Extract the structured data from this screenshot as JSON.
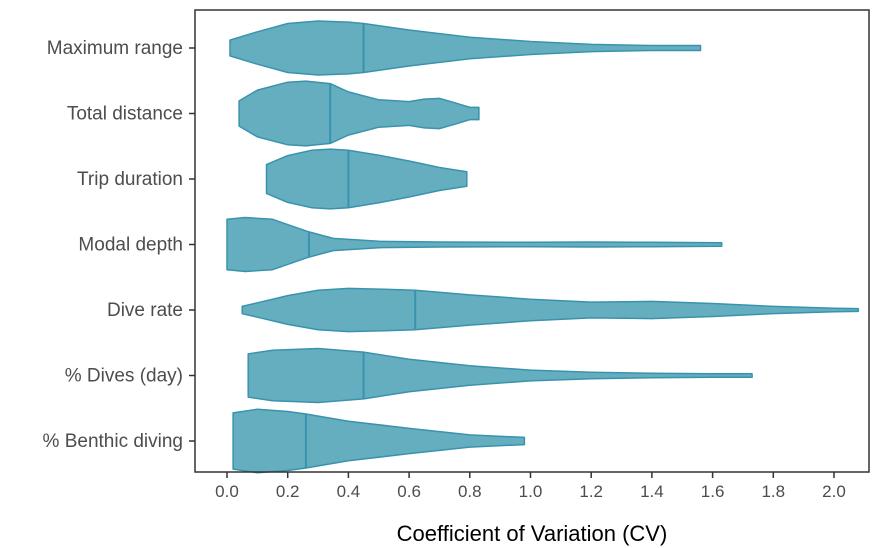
{
  "chart_data": {
    "type": "violin",
    "title": "",
    "xlabel": "Coefficient of Variation (CV)",
    "ylabel": "",
    "xlim": [
      -0.1,
      2.1
    ],
    "xticks": [
      0.0,
      0.2,
      0.4,
      0.6,
      0.8,
      1.0,
      1.2,
      1.4,
      1.6,
      1.8,
      2.0
    ],
    "xtick_labels": [
      "0.0",
      "0.2",
      "0.4",
      "0.6",
      "0.8",
      "1.0",
      "1.2",
      "1.4",
      "1.6",
      "1.8",
      "2.0"
    ],
    "grid": false,
    "legend": "none",
    "fill_color": "#64aec0",
    "line_color": "#3a93ad",
    "categories": [
      "Maximum range",
      "Total distance",
      "Trip duration",
      "Modal depth",
      "Dive rate",
      "% Dives (day)",
      "% Benthic diving"
    ],
    "violins": [
      {
        "name": "Maximum range",
        "min": 0.01,
        "max": 1.56,
        "median": 0.45,
        "profile": [
          [
            0.01,
            0.22
          ],
          [
            0.1,
            0.45
          ],
          [
            0.2,
            0.68
          ],
          [
            0.3,
            0.75
          ],
          [
            0.4,
            0.72
          ],
          [
            0.45,
            0.68
          ],
          [
            0.6,
            0.5
          ],
          [
            0.8,
            0.3
          ],
          [
            1.0,
            0.18
          ],
          [
            1.2,
            0.1
          ],
          [
            1.4,
            0.07
          ],
          [
            1.56,
            0.07
          ]
        ]
      },
      {
        "name": "Total distance",
        "min": 0.04,
        "max": 0.83,
        "median": 0.34,
        "profile": [
          [
            0.04,
            0.35
          ],
          [
            0.1,
            0.65
          ],
          [
            0.2,
            0.87
          ],
          [
            0.26,
            0.9
          ],
          [
            0.34,
            0.83
          ],
          [
            0.4,
            0.6
          ],
          [
            0.5,
            0.38
          ],
          [
            0.6,
            0.33
          ],
          [
            0.65,
            0.4
          ],
          [
            0.7,
            0.42
          ],
          [
            0.75,
            0.3
          ],
          [
            0.8,
            0.17
          ],
          [
            0.83,
            0.17
          ]
        ]
      },
      {
        "name": "Trip duration",
        "min": 0.13,
        "max": 0.79,
        "median": 0.4,
        "profile": [
          [
            0.13,
            0.4
          ],
          [
            0.2,
            0.65
          ],
          [
            0.28,
            0.8
          ],
          [
            0.34,
            0.83
          ],
          [
            0.4,
            0.8
          ],
          [
            0.5,
            0.66
          ],
          [
            0.6,
            0.5
          ],
          [
            0.7,
            0.32
          ],
          [
            0.79,
            0.2
          ]
        ]
      },
      {
        "name": "Modal depth",
        "min": 0.0,
        "max": 1.63,
        "median": 0.27,
        "profile": [
          [
            0.0,
            0.7
          ],
          [
            0.06,
            0.75
          ],
          [
            0.15,
            0.7
          ],
          [
            0.27,
            0.35
          ],
          [
            0.35,
            0.17
          ],
          [
            0.5,
            0.09
          ],
          [
            0.7,
            0.07
          ],
          [
            1.0,
            0.06
          ],
          [
            1.2,
            0.07
          ],
          [
            1.4,
            0.06
          ],
          [
            1.63,
            0.05
          ]
        ]
      },
      {
        "name": "Dive rate",
        "min": 0.05,
        "max": 2.08,
        "median": 0.62,
        "profile": [
          [
            0.05,
            0.1
          ],
          [
            0.1,
            0.2
          ],
          [
            0.2,
            0.4
          ],
          [
            0.3,
            0.55
          ],
          [
            0.4,
            0.6
          ],
          [
            0.5,
            0.58
          ],
          [
            0.62,
            0.55
          ],
          [
            0.8,
            0.42
          ],
          [
            1.0,
            0.3
          ],
          [
            1.2,
            0.22
          ],
          [
            1.4,
            0.24
          ],
          [
            1.6,
            0.18
          ],
          [
            1.8,
            0.1
          ],
          [
            2.0,
            0.05
          ],
          [
            2.08,
            0.04
          ]
        ]
      },
      {
        "name": "% Dives (day)",
        "min": 0.07,
        "max": 1.73,
        "median": 0.45,
        "profile": [
          [
            0.07,
            0.6
          ],
          [
            0.15,
            0.7
          ],
          [
            0.3,
            0.75
          ],
          [
            0.45,
            0.65
          ],
          [
            0.6,
            0.45
          ],
          [
            0.8,
            0.27
          ],
          [
            1.0,
            0.15
          ],
          [
            1.2,
            0.09
          ],
          [
            1.4,
            0.06
          ],
          [
            1.6,
            0.05
          ],
          [
            1.73,
            0.05
          ]
        ]
      },
      {
        "name": "% Benthic diving",
        "min": 0.02,
        "max": 0.98,
        "median": 0.26,
        "profile": [
          [
            0.02,
            0.78
          ],
          [
            0.1,
            0.88
          ],
          [
            0.2,
            0.82
          ],
          [
            0.26,
            0.75
          ],
          [
            0.4,
            0.55
          ],
          [
            0.6,
            0.35
          ],
          [
            0.8,
            0.17
          ],
          [
            0.98,
            0.1
          ]
        ]
      }
    ]
  }
}
